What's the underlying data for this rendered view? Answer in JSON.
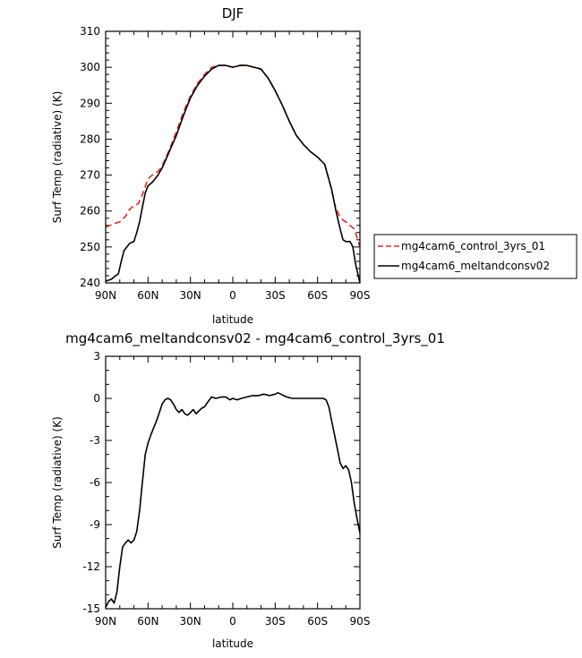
{
  "chart_data": [
    {
      "type": "line",
      "title": "DJF",
      "xlabel": "latitude",
      "ylabel": "Surf Temp (radiative) (K)",
      "xlim": [
        90,
        -90
      ],
      "ylim": [
        240,
        310
      ],
      "xticks": [
        90,
        60,
        30,
        0,
        -30,
        -60,
        -90
      ],
      "xtick_labels": [
        "90N",
        "60N",
        "30N",
        "0",
        "30S",
        "60S",
        "90S"
      ],
      "yticks": [
        240,
        250,
        260,
        270,
        280,
        290,
        300,
        310
      ],
      "ytick_labels": [
        "240",
        "250",
        "260",
        "270",
        "280",
        "290",
        "300",
        "310"
      ],
      "legend_position": "right",
      "series": [
        {
          "name": "mg4cam6_control_3yrs_01",
          "color": "#e8261e",
          "dash": "dashed",
          "x": [
            90,
            87,
            84,
            80,
            76,
            73,
            70,
            67,
            64,
            60,
            57,
            53,
            50,
            45,
            40,
            35,
            30,
            25,
            20,
            15,
            10,
            5,
            0,
            -5,
            -10,
            -15,
            -20,
            -25,
            -30,
            -35,
            -40,
            -45,
            -50,
            -55,
            -60,
            -65,
            -70,
            -72,
            -75,
            -78,
            -80,
            -83,
            -86,
            -90
          ],
          "y": [
            255.5,
            256,
            256.5,
            257,
            258.5,
            260.5,
            261.5,
            262,
            264.5,
            269,
            270,
            271,
            272.5,
            277,
            282,
            287.5,
            292,
            295.5,
            298,
            300,
            300.5,
            300.5,
            300,
            300.5,
            300.5,
            300,
            299.5,
            297,
            293.5,
            289.5,
            285,
            281,
            278.5,
            276.5,
            275,
            273,
            266,
            262,
            259,
            257.5,
            257,
            256,
            255,
            250
          ]
        },
        {
          "name": "mg4cam6_meltandconsv02",
          "color": "#000000",
          "dash": "solid",
          "x": [
            90,
            86,
            83,
            81,
            79,
            77,
            75,
            73,
            70,
            68,
            66,
            64,
            62,
            60,
            57,
            53,
            50,
            45,
            40,
            35,
            30,
            25,
            20,
            15,
            10,
            5,
            0,
            -5,
            -10,
            -15,
            -20,
            -25,
            -30,
            -35,
            -40,
            -45,
            -50,
            -55,
            -60,
            -65,
            -70,
            -73,
            -76,
            -78,
            -80,
            -83,
            -85,
            -87,
            -90
          ],
          "y": [
            240.5,
            241,
            242,
            242.5,
            246,
            249,
            250,
            251,
            251.5,
            254,
            257,
            261,
            265,
            267,
            268,
            270,
            272,
            276.5,
            281,
            286.5,
            291.5,
            295,
            297.5,
            299.5,
            300.5,
            300.5,
            300,
            300.5,
            300.5,
            300,
            299.5,
            297,
            293.5,
            289.5,
            285,
            281,
            278.5,
            276.5,
            275,
            273,
            266,
            260,
            255,
            252,
            251.5,
            251.5,
            250,
            245,
            240
          ]
        }
      ]
    },
    {
      "type": "line",
      "title": "mg4cam6_meltandconsv02 - mg4cam6_control_3yrs_01",
      "xlabel": "latitude",
      "ylabel": "Surf Temp (radiative) (K)",
      "xlim": [
        90,
        -90
      ],
      "ylim": [
        -15,
        3
      ],
      "xticks": [
        90,
        60,
        30,
        0,
        -30,
        -60,
        -90
      ],
      "xtick_labels": [
        "90N",
        "60N",
        "30N",
        "0",
        "30S",
        "60S",
        "90S"
      ],
      "yticks": [
        -15,
        -12,
        -9,
        -6,
        -3,
        0,
        3
      ],
      "ytick_labels": [
        "-15",
        "-12",
        "-9",
        "-6",
        "-3",
        "0",
        "3"
      ],
      "series": [
        {
          "color": "#000000",
          "dash": "solid",
          "x": [
            90,
            88,
            86,
            84,
            82,
            80,
            78,
            76,
            74,
            72,
            70,
            68,
            66,
            64,
            62,
            60,
            58,
            56,
            54,
            52,
            50,
            48,
            46,
            44,
            42,
            40,
            38,
            36,
            34,
            32,
            30,
            28,
            26,
            24,
            22,
            20,
            18,
            15,
            12,
            8,
            5,
            2,
            0,
            -3,
            -6,
            -10,
            -14,
            -18,
            -22,
            -26,
            -30,
            -32,
            -34,
            -38,
            -42,
            -46,
            -50,
            -55,
            -60,
            -64,
            -66,
            -68,
            -70,
            -72,
            -74,
            -76,
            -78,
            -80,
            -82,
            -84,
            -86,
            -88,
            -90
          ],
          "y": [
            -14.9,
            -14.5,
            -14.3,
            -14.6,
            -13.8,
            -12,
            -10.6,
            -10.3,
            -10.1,
            -10.3,
            -10.1,
            -9.5,
            -8,
            -6,
            -4,
            -3.2,
            -2.6,
            -2.1,
            -1.6,
            -1.0,
            -0.4,
            -0.1,
            0,
            -0.1,
            -0.4,
            -0.8,
            -1.0,
            -0.8,
            -1.1,
            -1.2,
            -1.0,
            -0.8,
            -1.1,
            -0.9,
            -0.7,
            -0.6,
            -0.3,
            0.1,
            0.0,
            0.1,
            0.1,
            -0.1,
            0.0,
            -0.1,
            0.0,
            0.1,
            0.2,
            0.2,
            0.3,
            0.2,
            0.3,
            0.4,
            0.3,
            0.1,
            0.0,
            0.0,
            0.0,
            0.0,
            0.0,
            0.0,
            -0.1,
            -0.6,
            -1.6,
            -2.6,
            -3.6,
            -4.6,
            -5.0,
            -4.8,
            -5.1,
            -6.0,
            -7.5,
            -8.6,
            -9.6
          ]
        }
      ]
    }
  ]
}
